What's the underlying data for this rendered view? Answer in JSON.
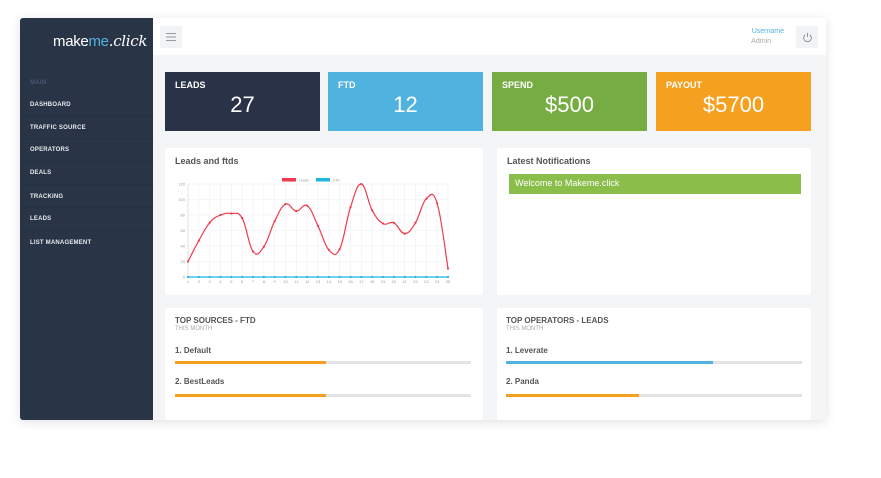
{
  "logo": {
    "make": "make",
    "me": "me",
    "click": ".click"
  },
  "sidebar": {
    "section": "MAIN",
    "items": [
      {
        "label": "DASHBOARD"
      },
      {
        "label": "TRAFFIC SOURCE"
      },
      {
        "label": "OPERATORS"
      },
      {
        "label": "DEALS"
      },
      {
        "label": "TRACKING"
      },
      {
        "label": "LEADS"
      },
      {
        "label": "LIST MANAGEMENT"
      }
    ]
  },
  "header": {
    "menu_icon": "hamburger-icon",
    "username": "Username",
    "role": "Admin",
    "power_icon": "power-icon"
  },
  "stats": [
    {
      "label": "LEADS",
      "value": "27",
      "color": "#293246"
    },
    {
      "label": "FTD",
      "value": "12",
      "color": "#50b3df"
    },
    {
      "label": "SPEND",
      "value": "$500",
      "color": "#76ac42"
    },
    {
      "label": "PAYOUT",
      "value": "$5700",
      "color": "#f5a01f"
    }
  ],
  "chart_panel": {
    "title": "Leads and ftds"
  },
  "notifications": {
    "title": "Latest Notifications",
    "items": [
      {
        "text": "Welcome to Makeme.click"
      }
    ]
  },
  "top_sources": {
    "title": "TOP SOURCES - FTD",
    "subtitle": "THIS MONTH",
    "items": [
      {
        "label": "1. Default",
        "percent": 51,
        "color": "#f5a01f"
      },
      {
        "label": "2. BestLeads",
        "percent": 51,
        "color": "#f5a01f"
      }
    ]
  },
  "top_operators": {
    "title": "TOP OPERATORS - LEADS",
    "subtitle": "THIS MONTH",
    "items": [
      {
        "label": "1. Leverate",
        "percent": 70,
        "color": "#50b3df"
      },
      {
        "label": "2. Panda",
        "percent": 45,
        "color": "#f5a01f"
      }
    ]
  },
  "chart_data": {
    "type": "line",
    "title": "Leads and ftds",
    "xlabel": "",
    "ylabel": "",
    "x": [
      1,
      2,
      3,
      4,
      5,
      6,
      7,
      8,
      9,
      10,
      11,
      12,
      13,
      14,
      15,
      16,
      17,
      18,
      19,
      20,
      21,
      22,
      23,
      24,
      25
    ],
    "series": [
      {
        "name": "Leads",
        "color": "#ef3b4c",
        "values": [
          20,
          47,
          70,
          80,
          82,
          76,
          33,
          39,
          72,
          94,
          85,
          92,
          66,
          35,
          36,
          90,
          120,
          86,
          69,
          70,
          56,
          70,
          101,
          95,
          11
        ]
      },
      {
        "name": "FTD",
        "color": "#1fb5dd",
        "values": [
          0,
          0,
          0,
          0,
          0,
          0,
          0,
          0,
          0,
          0,
          0,
          0,
          0,
          0,
          0,
          0,
          0,
          0,
          0,
          0,
          0,
          0,
          0,
          0,
          0
        ]
      }
    ],
    "ylim": [
      0,
      120
    ],
    "yticks": [
      0,
      20,
      40,
      60,
      80,
      100,
      120
    ],
    "grid": true,
    "legend_position": "top"
  }
}
